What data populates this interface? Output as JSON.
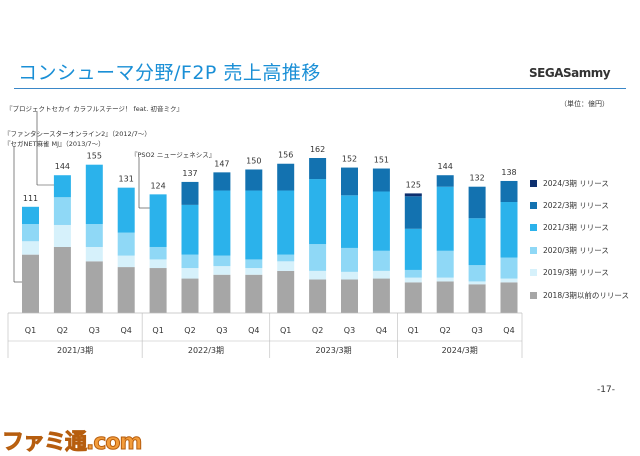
{
  "header": {
    "title": "コンシューマ分野/F2P 売上高推移",
    "logo": "SEGASammy",
    "unit": "（単位：億円）"
  },
  "notes": {
    "n1": "『プロジェクトセカイ カラフルステージ！ feat. 初音ミク』",
    "n2a": "『ファンタシースターオンライン2』（2012/7～）",
    "n2b": "『セガNET麻雀 MJ』（2013/7～）",
    "n3": "『PSO2 ニュージェネシス』"
  },
  "page_number": "-17-",
  "watermark": "ファミ通.com",
  "colors": {
    "s2024": "#0d2f6e",
    "s2022": "#1372b0",
    "s2021": "#2bb2eb",
    "s2020": "#8fd8f6",
    "s2019": "#d6f1fb",
    "s2018": "#a6a6a6"
  },
  "chart_data": {
    "type": "bar",
    "stacked": true,
    "title": "コンシューマ分野/F2P 売上高推移",
    "unit": "億円",
    "categories": [
      "Q1",
      "Q2",
      "Q3",
      "Q4",
      "Q1",
      "Q2",
      "Q3",
      "Q4",
      "Q1",
      "Q2",
      "Q3",
      "Q4",
      "Q1",
      "Q2",
      "Q3",
      "Q4"
    ],
    "groups": [
      {
        "label": "2021/3期",
        "start": 0,
        "count": 4
      },
      {
        "label": "2022/3期",
        "start": 4,
        "count": 4
      },
      {
        "label": "2023/3期",
        "start": 8,
        "count": 4
      },
      {
        "label": "2024/3期",
        "start": 12,
        "count": 4
      }
    ],
    "totals": [
      111,
      144,
      155,
      131,
      124,
      137,
      147,
      150,
      156,
      162,
      152,
      151,
      125,
      144,
      132,
      138
    ],
    "series": [
      {
        "name": "2018/3期以前のリリース",
        "color_key": "s2018",
        "values": [
          61,
          69,
          54,
          48,
          47,
          36,
          40,
          40,
          44,
          35,
          35,
          36,
          32,
          33,
          30,
          32
        ]
      },
      {
        "name": "2019/3期 リリース",
        "color_key": "s2019",
        "values": [
          14,
          23,
          15,
          12,
          9,
          11,
          9,
          7,
          10,
          9,
          8,
          8,
          5,
          4,
          3,
          4
        ]
      },
      {
        "name": "2020/3期 リリース",
        "color_key": "s2020",
        "values": [
          18,
          29,
          24,
          24,
          13,
          14,
          11,
          9,
          7,
          28,
          25,
          21,
          8,
          28,
          17,
          22
        ]
      },
      {
        "name": "2021/3期 リリース",
        "color_key": "s2021",
        "values": [
          18,
          23,
          62,
          47,
          55,
          52,
          68,
          72,
          67,
          68,
          55,
          62,
          43,
          67,
          49,
          58
        ]
      },
      {
        "name": "2022/3期 リリース",
        "color_key": "s2022",
        "values": [
          0,
          0,
          0,
          0,
          0,
          24,
          19,
          22,
          28,
          22,
          29,
          24,
          34,
          12,
          33,
          22
        ]
      },
      {
        "name": "2024/3期 リリース",
        "color_key": "s2024",
        "values": [
          0,
          0,
          0,
          0,
          0,
          0,
          0,
          0,
          0,
          0,
          0,
          0,
          3,
          0,
          0,
          0
        ]
      }
    ],
    "ylim": [
      0,
      175
    ]
  }
}
